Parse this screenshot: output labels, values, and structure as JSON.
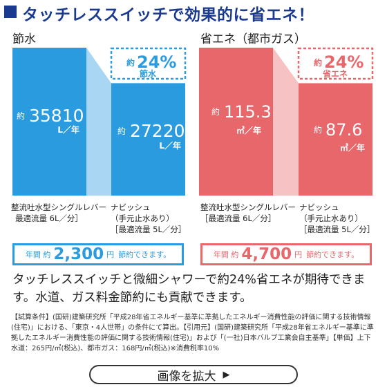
{
  "header": {
    "title": "タッチレススイッチで効果的に省エネ！"
  },
  "colors": {
    "water_bar": "#2b9be0",
    "water_band": "#a9d6f2",
    "gas_bar": "#e8676b",
    "gas_band": "#f6c2c3",
    "navy": "#1a3a8f"
  },
  "chart_data": [
    {
      "type": "bar",
      "title": "節水",
      "categories": [
        "整流吐水型シングルレバー",
        "ナビッシュ"
      ],
      "values": [
        35810,
        27220
      ],
      "unit": "L／年",
      "value_prefix": "約",
      "badge": {
        "value": "24%",
        "prefix": "約",
        "label": "節水"
      },
      "captions": [
        [
          "整流吐水型シングルレバー",
          "最適流量 6L／分］"
        ],
        [
          "ナビッシュ",
          "（手元止水あり）",
          "［最適流量 5L／分］"
        ]
      ],
      "saving": {
        "prefix": "年間 約",
        "amount": "2,300",
        "unit": "円",
        "suffix": "節約できます。"
      }
    },
    {
      "type": "bar",
      "title": "省エネ（都市ガス）",
      "categories": [
        "整流吐水型シングルレバー",
        "ナビッシュ"
      ],
      "values": [
        115.3,
        87.6
      ],
      "unit": "㎥／年",
      "value_prefix": "約",
      "badge": {
        "value": "24%",
        "prefix": "約",
        "label": "省エネ"
      },
      "captions": [
        [
          "整流吐水型シングルレバー",
          "［最適流量 6L／分］"
        ],
        [
          "ナビッシュ",
          "（手元止水あり）",
          "［最適流量 5L／分］"
        ]
      ],
      "saving": {
        "prefix": "年間 約",
        "amount": "4,700",
        "unit": "円",
        "suffix": "節約できます。"
      }
    }
  ],
  "description": "タッチレススイッチと微細シャワーで約24%省エネが期待できます。水道、ガス料金節約にも貢献できます。",
  "fine_print": "【試算条件】(国研)建築研究所「平成28年省エネルギー基準に準拠したエネルギー消費性能の評価に関する技術情報(住宅)」における、「東京・4人世帯」の条件にて算出。【引用元】(国研)建築研究所「平成28年省エネルギー基準に準拠したエネルギー消費性能の評価に関する技術情報(住宅)」および「(一社)日本バルブ工業会自主基準」【単価】上下水道：265円/㎥(税込)、都市ガス：168円/㎥(税込)※消費税率10%",
  "zoom_button": {
    "label": "画像を拡大",
    "arrow": "▶"
  }
}
